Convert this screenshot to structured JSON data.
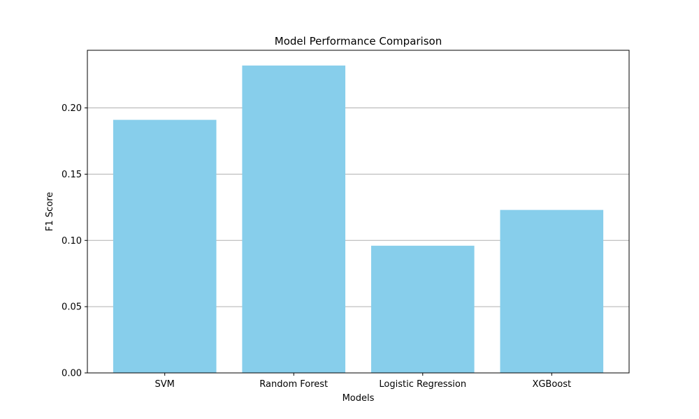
{
  "chart_data": {
    "type": "bar",
    "title": "Model Performance Comparison",
    "xlabel": "Models",
    "ylabel": "F1 Score",
    "categories": [
      "SVM",
      "Random Forest",
      "Logistic Regression",
      "XGBoost"
    ],
    "values": [
      0.191,
      0.232,
      0.096,
      0.123
    ],
    "ylim": [
      0,
      0.2435
    ],
    "yticks": [
      0.0,
      0.05,
      0.1,
      0.15,
      0.2
    ],
    "ytick_labels": [
      "0.00",
      "0.05",
      "0.10",
      "0.15",
      "0.20"
    ],
    "grid": "y-major",
    "bar_color": "#87ceeb",
    "grid_color": "#b0b0b0"
  }
}
